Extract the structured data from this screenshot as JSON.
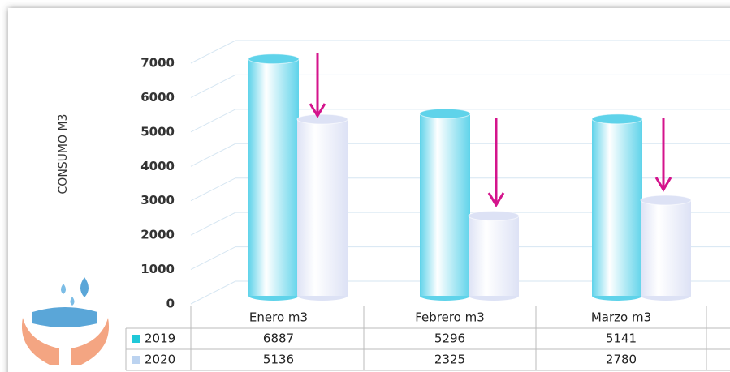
{
  "chart_data": {
    "type": "bar",
    "y_label": "CONSUMO M3",
    "categories": [
      "Enero m3",
      "Febrero m3",
      "Marzo m3"
    ],
    "series": [
      {
        "name": "2019",
        "color": "#5fd3ea",
        "values": [
          6887,
          5296,
          5141
        ]
      },
      {
        "name": "2020",
        "color": "#dde2f5",
        "values": [
          5136,
          2325,
          2780
        ]
      }
    ],
    "ylim": [
      0,
      7000
    ],
    "yticks": [
      0,
      1000,
      2000,
      3000,
      4000,
      5000,
      6000,
      7000
    ],
    "grid": true
  }
}
